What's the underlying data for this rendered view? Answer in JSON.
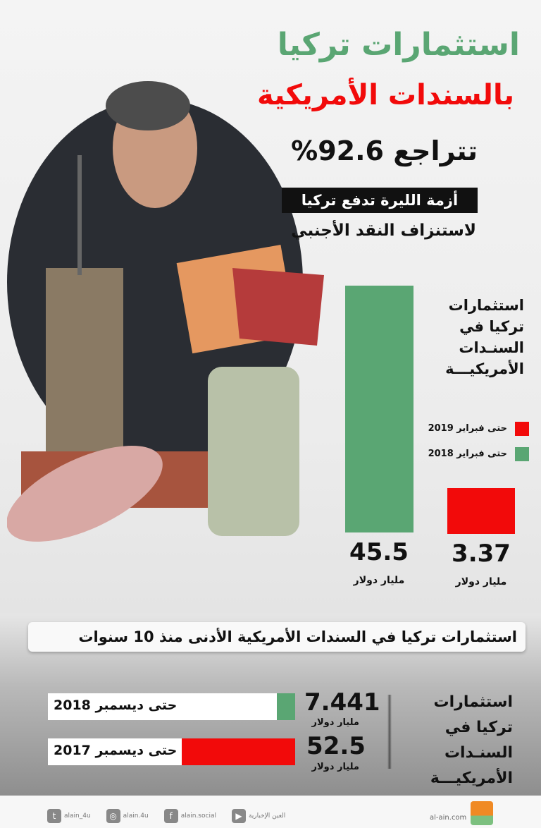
{
  "header": {
    "title_line1": "استثمارات تركيا",
    "title_line2": "بالسندات الأمريكية",
    "headline": "تتراجع 92.6%",
    "tag": "أزمة الليرة تدفع تركيا",
    "subtitle": "لاستنزاف النقد الأجنبي"
  },
  "colors": {
    "green": "#5aa673",
    "red": "#f20a0a",
    "dark": "#111111"
  },
  "chart_data": [
    {
      "type": "bar",
      "title": "استثمارات تركيا في السنـدات الأمريكيـــة",
      "categories": [
        "حتى فبراير 2018",
        "حتى فبراير 2019"
      ],
      "values": [
        45.5,
        3.37
      ],
      "value_labels": [
        "45.5",
        "3.37"
      ],
      "unit": "مليار دولار",
      "colors": [
        "#5aa673",
        "#f20a0a"
      ],
      "legend": [
        "حتى فبراير 2019",
        "حتى فبراير 2018"
      ],
      "legend_position": "right",
      "grid": false
    },
    {
      "type": "bar",
      "orientation": "horizontal",
      "title": "استثمارات تركيا في السنـدات الأمريكيـــة",
      "banner": "استثمارات تركيا في السندات الأمريكية الأدنى منذ 10 سنوات",
      "categories": [
        "حتى ديسمبر 2018",
        "حتى ديسمبر 2017"
      ],
      "values": [
        7.441,
        52.5
      ],
      "value_labels": [
        "7.441",
        "52.5"
      ],
      "unit": "مليار دولار",
      "colors": [
        "#5aa673",
        "#f20a0a"
      ],
      "grid": false
    }
  ],
  "footer": {
    "social": [
      {
        "icon": "twitter-icon",
        "label": "alain_4u"
      },
      {
        "icon": "instagram-icon",
        "label": "alain.4u"
      },
      {
        "icon": "facebook-icon",
        "label": "alain.social"
      },
      {
        "icon": "youtube-icon",
        "label": "العين الإخبارية"
      }
    ],
    "site": "al-ain.com",
    "logo_text": "العين الإخبارية"
  }
}
